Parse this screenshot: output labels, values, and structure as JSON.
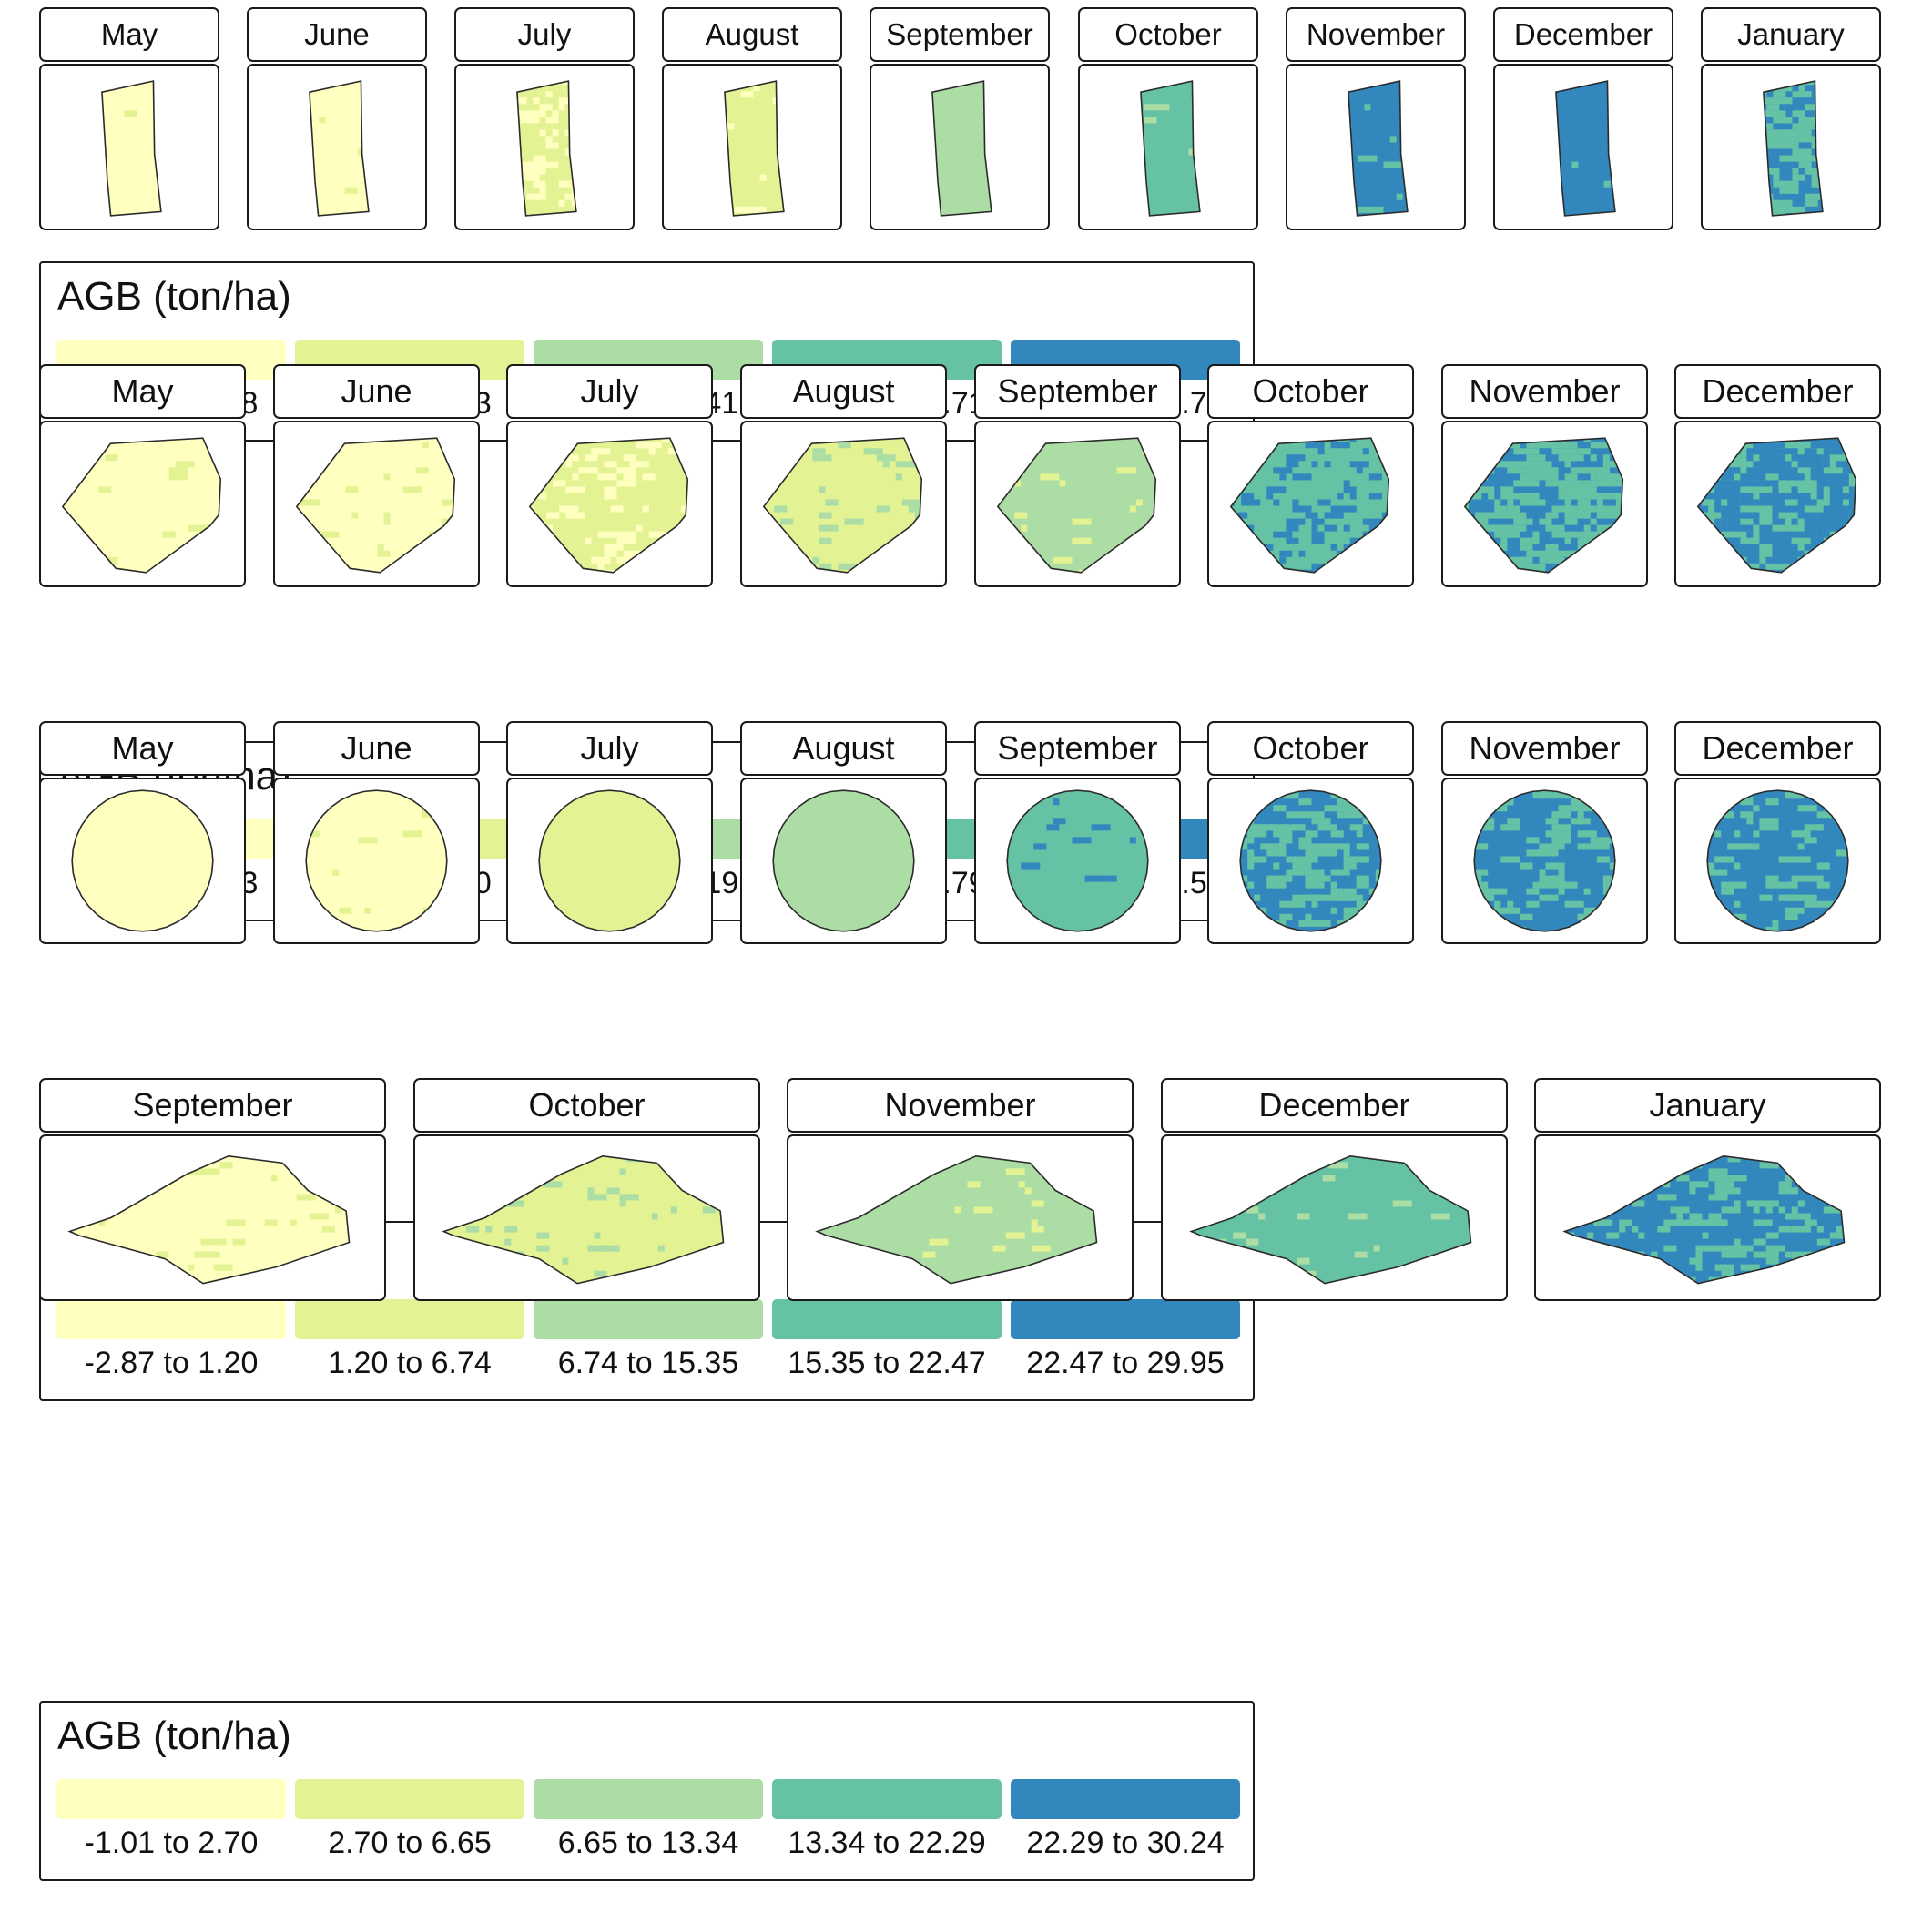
{
  "palette": [
    "#ffffbf",
    "#e3f393",
    "#abdda4",
    "#66c2a5",
    "#3288bd"
  ],
  "boundary_color": "#2b2b2b",
  "figures": [
    {
      "id": "field-1",
      "shape": "rectangle",
      "legend": {
        "title": "AGB (ton/ha)",
        "classes": [
          "-1.22 to 1.98",
          "1.98 to 6.73",
          "6.73 to 13.41",
          "13.41 to 20.71",
          "20.71 to 27.79"
        ]
      },
      "panels": [
        {
          "month": "May",
          "base_class": 0,
          "patch_class": 1,
          "patch_density": 0.01
        },
        {
          "month": "June",
          "base_class": 0,
          "patch_class": 1,
          "patch_density": 0.02
        },
        {
          "month": "July",
          "base_class": 0,
          "patch_class": 1,
          "patch_density": 0.45
        },
        {
          "month": "August",
          "base_class": 1,
          "patch_class": 0,
          "patch_density": 0.03
        },
        {
          "month": "September",
          "base_class": 2,
          "patch_class": 1,
          "patch_density": 0.02
        },
        {
          "month": "October",
          "base_class": 3,
          "patch_class": 2,
          "patch_density": 0.02
        },
        {
          "month": "November",
          "base_class": 4,
          "patch_class": 3,
          "patch_density": 0.04
        },
        {
          "month": "December",
          "base_class": 4,
          "patch_class": 3,
          "patch_density": 0.02
        },
        {
          "month": "January",
          "base_class": 4,
          "patch_class": 3,
          "patch_density": 0.35
        }
      ]
    },
    {
      "id": "field-2",
      "shape": "polygon",
      "legend": {
        "title": "AGB (ton/ha)",
        "classes": [
          "-2.20 to 0.73",
          "0.73 to 4.70",
          "4.70 to 10.19",
          "10.19 to 14.79",
          "14.79 to 22.50"
        ]
      },
      "panels": [
        {
          "month": "May",
          "base_class": 0,
          "patch_class": 1,
          "patch_density": 0.03
        },
        {
          "month": "June",
          "base_class": 0,
          "patch_class": 1,
          "patch_density": 0.04
        },
        {
          "month": "July",
          "base_class": 1,
          "patch_class": 0,
          "patch_density": 0.12
        },
        {
          "month": "August",
          "base_class": 1,
          "patch_class": 2,
          "patch_density": 0.06
        },
        {
          "month": "September",
          "base_class": 2,
          "patch_class": 1,
          "patch_density": 0.05
        },
        {
          "month": "October",
          "base_class": 3,
          "patch_class": 4,
          "patch_density": 0.18
        },
        {
          "month": "November",
          "base_class": 4,
          "patch_class": 3,
          "patch_density": 0.45
        },
        {
          "month": "December",
          "base_class": 3,
          "patch_class": 4,
          "patch_density": 0.45
        }
      ]
    },
    {
      "id": "field-3",
      "shape": "circle",
      "legend": {
        "title": "AGB (ton/ha)",
        "classes": [
          "-2.87 to 1.20",
          "1.20 to 6.74",
          "6.74 to 15.35",
          "15.35 to 22.47",
          "22.47 to 29.95"
        ]
      },
      "panels": [
        {
          "month": "May",
          "base_class": 0,
          "patch_class": 1,
          "patch_density": 0.0
        },
        {
          "month": "June",
          "base_class": 0,
          "patch_class": 1,
          "patch_density": 0.01
        },
        {
          "month": "July",
          "base_class": 1,
          "patch_class": 0,
          "patch_density": 0.0
        },
        {
          "month": "August",
          "base_class": 2,
          "patch_class": 1,
          "patch_density": 0.0
        },
        {
          "month": "September",
          "base_class": 3,
          "patch_class": 4,
          "patch_density": 0.02
        },
        {
          "month": "October",
          "base_class": 4,
          "patch_class": 3,
          "patch_density": 0.3
        },
        {
          "month": "November",
          "base_class": 4,
          "patch_class": 3,
          "patch_density": 0.2
        },
        {
          "month": "December",
          "base_class": 4,
          "patch_class": 3,
          "patch_density": 0.12
        }
      ]
    },
    {
      "id": "field-4",
      "shape": "lobe",
      "legend": {
        "title": "AGB (ton/ha)",
        "classes": [
          "-1.01 to 2.70",
          "2.70 to 6.65",
          "6.65 to 13.34",
          "13.34 to 22.29",
          "22.29 to 30.24"
        ]
      },
      "panels": [
        {
          "month": "September",
          "base_class": 0,
          "patch_class": 1,
          "patch_density": 0.05
        },
        {
          "month": "October",
          "base_class": 1,
          "patch_class": 2,
          "patch_density": 0.05
        },
        {
          "month": "November",
          "base_class": 2,
          "patch_class": 1,
          "patch_density": 0.03
        },
        {
          "month": "December",
          "base_class": 3,
          "patch_class": 2,
          "patch_density": 0.04
        },
        {
          "month": "January",
          "base_class": 4,
          "patch_class": 3,
          "patch_density": 0.22
        }
      ]
    }
  ]
}
